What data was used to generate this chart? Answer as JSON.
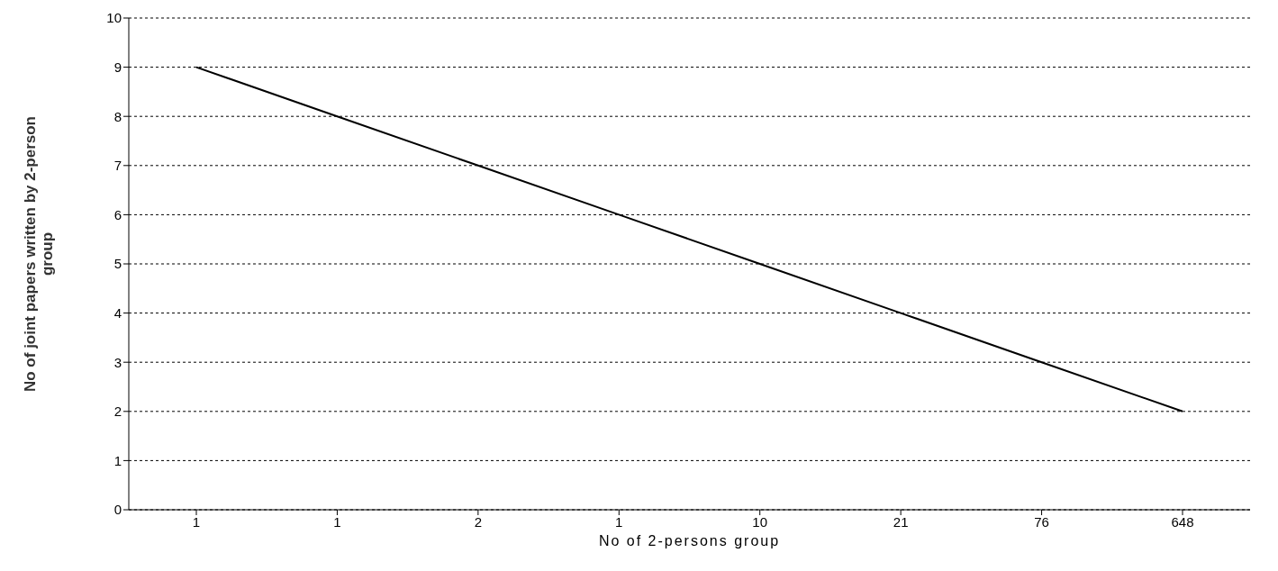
{
  "chart_data": {
    "type": "line",
    "xlabel": "No of 2-persons group",
    "ylabel": "No of joint papers written by 2-person group",
    "categories": [
      "1",
      "1",
      "2",
      "1",
      "10",
      "21",
      "76",
      "648"
    ],
    "series": [
      {
        "color": "#000000",
        "values": [
          9,
          8,
          7,
          6,
          5,
          4,
          3,
          2
        ]
      }
    ],
    "ylim": [
      0,
      10
    ],
    "yticks": [
      0,
      1,
      2,
      3,
      4,
      5,
      6,
      7,
      8,
      9,
      10
    ],
    "grid": "y",
    "marker": "none",
    "line_style": "solid"
  }
}
